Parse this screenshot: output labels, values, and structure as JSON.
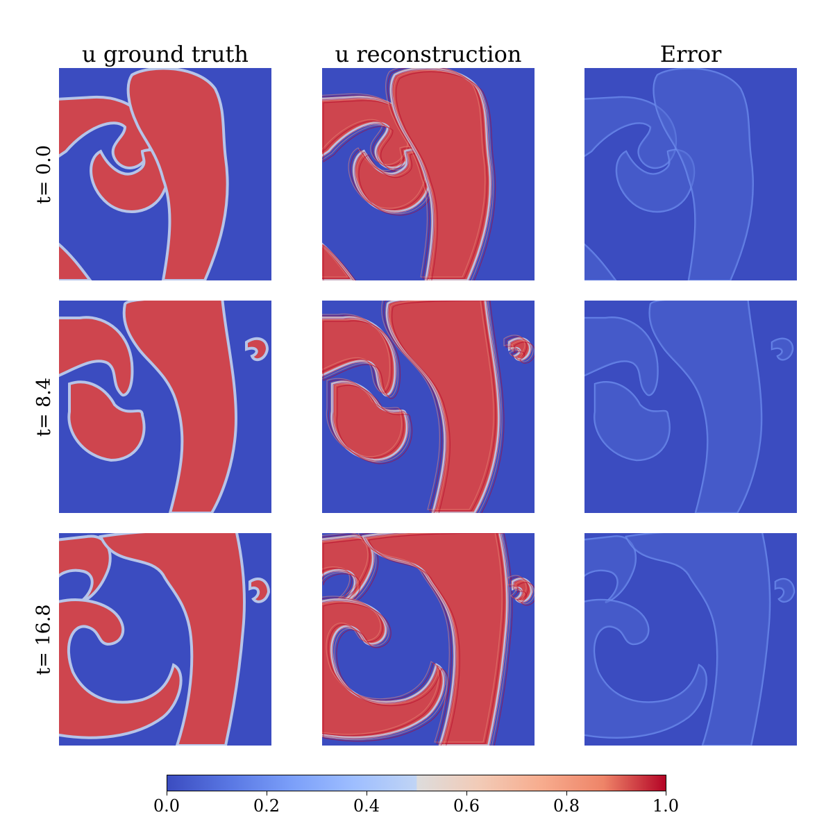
{
  "chart_data": {
    "type": "heatmap",
    "columns": [
      "u ground truth",
      "u reconstruction",
      "Error"
    ],
    "rows": [
      "t= 0.0",
      "t= 8.4",
      "t= 16.8"
    ],
    "colormap": "coolwarm",
    "colorbar": {
      "range": [
        0.0,
        1.0
      ],
      "ticks": [
        "0.0",
        "0.2",
        "0.4",
        "0.6",
        "0.8",
        "1.0"
      ]
    },
    "field": {
      "description_values": {
        "background": 0.0,
        "spiral_body": 0.9,
        "front_edge": 0.4
      },
      "error_values": {
        "background": 0.0,
        "edges": 0.2,
        "max_highlight": 0.35
      }
    }
  },
  "colors": {
    "low": "#3b4cc0",
    "mid": "#dddcdc",
    "high": "#b40426",
    "error_bg": "#3d50c3",
    "error_edge": "#6788ee"
  }
}
